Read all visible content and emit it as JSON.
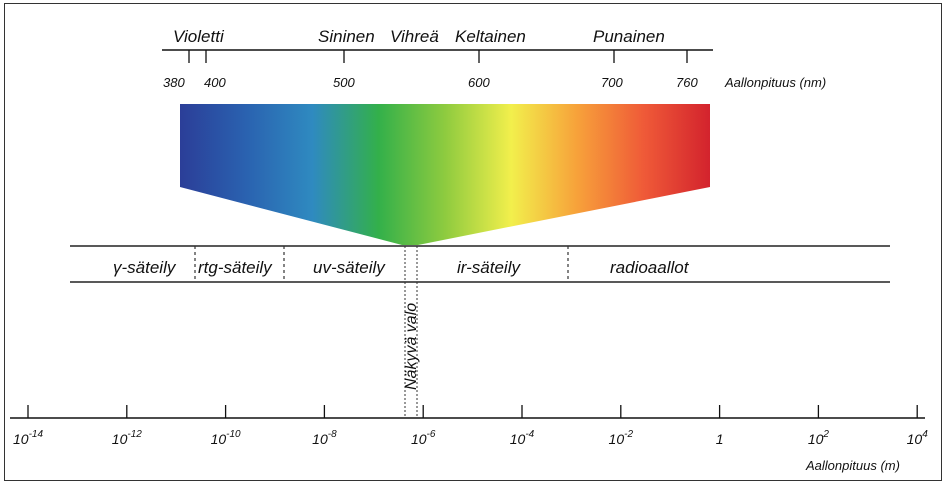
{
  "visible_spectrum": {
    "color_names": [
      {
        "key": "violet",
        "label": "Violetti"
      },
      {
        "key": "blue",
        "label": "Sininen"
      },
      {
        "key": "green",
        "label": "Vihreä"
      },
      {
        "key": "yellow",
        "label": "Keltainen"
      },
      {
        "key": "red",
        "label": "Punainen"
      }
    ],
    "nm_ticks": [
      "380",
      "400",
      "500",
      "600",
      "700",
      "760"
    ],
    "axis_label": "Aallonpituus (nm)",
    "gradient_colors": [
      "#2b3e98",
      "#2a62b0",
      "#2f8ac0",
      "#33b04a",
      "#8ecb3f",
      "#f2ef4c",
      "#f7a13a",
      "#ef5a38",
      "#d3232d"
    ]
  },
  "em_spectrum": {
    "bands": [
      {
        "key": "gamma",
        "label": "γ-säteily"
      },
      {
        "key": "xray",
        "label": "rtg-säteily"
      },
      {
        "key": "uv",
        "label": "uv-säteily"
      },
      {
        "key": "ir",
        "label": "ir-säteily"
      },
      {
        "key": "radio",
        "label": "radioaallot"
      }
    ],
    "visible_label": "Näkyvä valo"
  },
  "meter_axis": {
    "ticks": [
      {
        "base": "10",
        "exp": "-14"
      },
      {
        "base": "10",
        "exp": "-12"
      },
      {
        "base": "10",
        "exp": "-10"
      },
      {
        "base": "10",
        "exp": "-8"
      },
      {
        "base": "10",
        "exp": "-6"
      },
      {
        "base": "10",
        "exp": "-4"
      },
      {
        "base": "10",
        "exp": "-2"
      },
      {
        "base": "1",
        "exp": ""
      },
      {
        "base": "10",
        "exp": "2"
      },
      {
        "base": "10",
        "exp": "4"
      }
    ],
    "axis_label": "Aallonpituus (m)"
  }
}
